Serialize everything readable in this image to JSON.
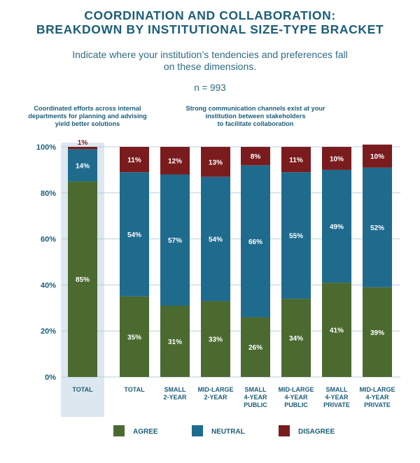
{
  "title_lines": [
    "COORDINATION AND COLLABORATION:",
    "BREAKDOWN BY INSTITUTIONAL SIZE-TYPE BRACKET"
  ],
  "subtitle": "Indicate where your institution’s tendencies and preferences fall on these dimensions.",
  "n_label": "n = 993",
  "question_left_lines": [
    "Coordinated efforts across internal",
    "departments for planning and advising",
    "yield better solutions"
  ],
  "question_right_lines": [
    "Strong communication channels exist at your",
    "institution between stakeholders",
    "to facilitate collaboration"
  ],
  "colors": {
    "agree": "#4b6a30",
    "neutral": "#1f6b8e",
    "disagree": "#7a1c1e",
    "highlight": "#dde7ef",
    "axis_text": "#1c5e78",
    "grid": "#b8cfdc"
  },
  "chart_data": {
    "type": "bar",
    "stacked": true,
    "percent_stacked": true,
    "ylim": [
      0,
      100
    ],
    "yticks": [
      "0%",
      "20%",
      "40%",
      "60%",
      "80%",
      "100%"
    ],
    "categories": [
      [
        "TOTAL"
      ],
      [
        "TOTAL"
      ],
      [
        "SMALL",
        "2-YEAR"
      ],
      [
        "MID-LARGE",
        "2-YEAR"
      ],
      [
        "SMALL",
        "4-YEAR",
        "PUBLIC"
      ],
      [
        "MID-LARGE",
        "4-YEAR",
        "PUBLIC"
      ],
      [
        "SMALL",
        "4-YEAR",
        "PRIVATE"
      ],
      [
        "MID-LARGE",
        "4-YEAR",
        "PRIVATE"
      ]
    ],
    "highlighted_category_index": 0,
    "series": [
      {
        "name": "AGREE",
        "values": [
          85,
          35,
          31,
          33,
          26,
          34,
          41,
          39
        ],
        "labels": [
          "85%",
          "35%",
          "31%",
          "33%",
          "26%",
          "34%",
          "41%",
          "39%"
        ]
      },
      {
        "name": "NEUTRAL",
        "values": [
          14,
          54,
          57,
          54,
          66,
          55,
          49,
          52
        ],
        "labels": [
          "14%",
          "54%",
          "57%",
          "54%",
          "66%",
          "55%",
          "49%",
          "52%"
        ]
      },
      {
        "name": "DISAGREE",
        "values": [
          1,
          11,
          12,
          13,
          8,
          11,
          10,
          10
        ],
        "labels": [
          "1%",
          "11%",
          "12%",
          "13%",
          "8%",
          "11%",
          "10%",
          "10%"
        ]
      }
    ],
    "legend_position": "bottom",
    "grid": true
  }
}
